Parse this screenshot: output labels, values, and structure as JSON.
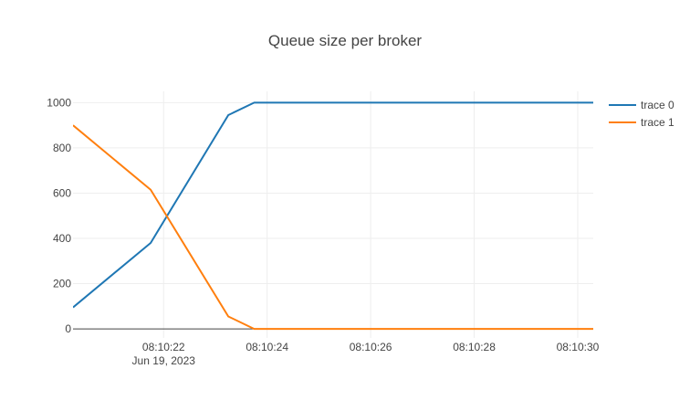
{
  "chart_data": {
    "type": "line",
    "title": "Queue size per broker",
    "xlabel": "",
    "ylabel": "",
    "x_range": [
      20.25,
      30.3
    ],
    "ylim": [
      -40,
      1050
    ],
    "x_ticks": [
      {
        "value": 22,
        "label": "08:10:22"
      },
      {
        "value": 24,
        "label": "08:10:24"
      },
      {
        "value": 26,
        "label": "08:10:26"
      },
      {
        "value": 28,
        "label": "08:10:28"
      },
      {
        "value": 30,
        "label": "08:10:30"
      }
    ],
    "x_date_label": "Jun 19, 2023",
    "y_ticks": [
      0,
      200,
      400,
      600,
      800,
      1000
    ],
    "grid": true,
    "legend_position": "top-right",
    "series": [
      {
        "name": "trace 0",
        "color": "#1f77b4",
        "points": [
          {
            "x": 20.25,
            "y": 95
          },
          {
            "x": 21.75,
            "y": 380
          },
          {
            "x": 23.25,
            "y": 945
          },
          {
            "x": 23.75,
            "y": 1000
          },
          {
            "x": 30.3,
            "y": 1000
          }
        ]
      },
      {
        "name": "trace 1",
        "color": "#ff7f0e",
        "points": [
          {
            "x": 20.25,
            "y": 900
          },
          {
            "x": 21.75,
            "y": 615
          },
          {
            "x": 23.25,
            "y": 55
          },
          {
            "x": 23.75,
            "y": 0
          },
          {
            "x": 30.3,
            "y": 0
          }
        ]
      }
    ]
  }
}
